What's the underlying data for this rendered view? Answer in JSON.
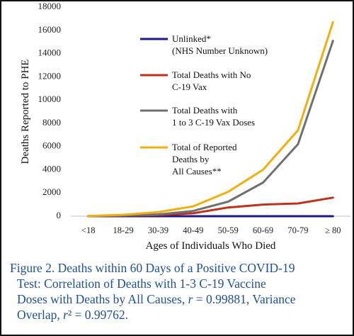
{
  "chart_data": {
    "type": "line",
    "categories": [
      "<18",
      "18-29",
      "30-39",
      "40-49",
      "50-59",
      "60-69",
      "70-79",
      "≥ 80"
    ],
    "ylabel": "Deaths Reported to PHE",
    "xlabel": "Ages of Individuals Who Died",
    "ylim": [
      0,
      18000
    ],
    "yticks": [
      "0",
      "2000",
      "4000",
      "6000",
      "8000",
      "10000",
      "12000",
      "14000",
      "16000",
      "18000"
    ],
    "legend_position": "left inside plot",
    "series": [
      {
        "name_line1": "Unlinked*",
        "name_line2": "(NHS Number Unknown)",
        "color": "#1a1a8c",
        "values": [
          0,
          0,
          0,
          0,
          0,
          0,
          0,
          0
        ]
      },
      {
        "name_line1": "Total Deaths with No",
        "name_line2": "C-19 Vax",
        "color": "#c0311c",
        "values": [
          10,
          40,
          100,
          250,
          750,
          1000,
          1100,
          1600
        ]
      },
      {
        "name_line1": "Total Deaths with",
        "name_line2": "1 to 3 C-19 Vax Doses",
        "color": "#707070",
        "values": [
          5,
          60,
          150,
          450,
          1250,
          2900,
          6200,
          15100
        ]
      },
      {
        "name_line1": "Total of Reported",
        "name_line2": "Deaths by",
        "name_line3": "All Causes**",
        "color": "#f2ae0c",
        "values": [
          20,
          120,
          350,
          850,
          2100,
          4000,
          7400,
          16700
        ]
      }
    ]
  },
  "caption": {
    "line1": "Figure 2. Deaths within 60 Days of a Positive COVID-19",
    "line2": "Test: Correlation of Deaths with 1-3 C-19 Vaccine",
    "line3": "Doses with Deaths by All Causes, r = 0.99881, Variance",
    "line4": "Overlap, r² = 0.99762."
  }
}
